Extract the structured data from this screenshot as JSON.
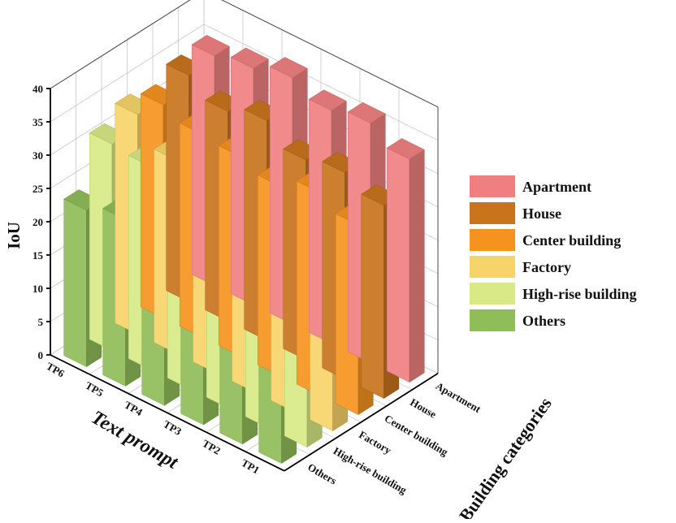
{
  "chart_data": {
    "type": "bar3d",
    "title": "",
    "zlabel": "IoU",
    "xlabel": "Text prompt",
    "ylabel": "Building categories",
    "zlim": [
      0,
      40
    ],
    "z_ticks": [
      "0",
      "5",
      "10",
      "15",
      "20",
      "25",
      "30",
      "35",
      "40"
    ],
    "text_prompts": [
      "TP6",
      "TP5",
      "TP4",
      "TP3",
      "TP2",
      "TP1"
    ],
    "categories": [
      "Apartment",
      "House",
      "Center building",
      "Factory",
      "High-rise building",
      "Others"
    ],
    "grid": true,
    "legend_position": "right",
    "series": [
      {
        "name": "Apartment",
        "color": "#f08080",
        "values": [
          34.5,
          35.5,
          37.0,
          35.0,
          36.0,
          33.5
        ]
      },
      {
        "name": "House",
        "color": "#c8741c",
        "values": [
          34.0,
          31.5,
          33.0,
          30.0,
          31.0,
          29.0
        ]
      },
      {
        "name": "Center building",
        "color": "#f5931f",
        "values": [
          32.0,
          30.5,
          30.0,
          28.5,
          30.5,
          28.5
        ]
      },
      {
        "name": "Factory",
        "color": "#f7d46a",
        "values": [
          33.0,
          29.0,
          29.0,
          29.0,
          27.0,
          27.5
        ]
      },
      {
        "name": "High-rise building",
        "color": "#d8e985",
        "values": [
          31.0,
          30.5,
          30.0,
          27.5,
          28.5,
          28.0
        ]
      },
      {
        "name": "Others",
        "color": "#8fbd58",
        "values": [
          23.5,
          25.0,
          27.0,
          25.5,
          25.0,
          22.5
        ]
      }
    ]
  }
}
